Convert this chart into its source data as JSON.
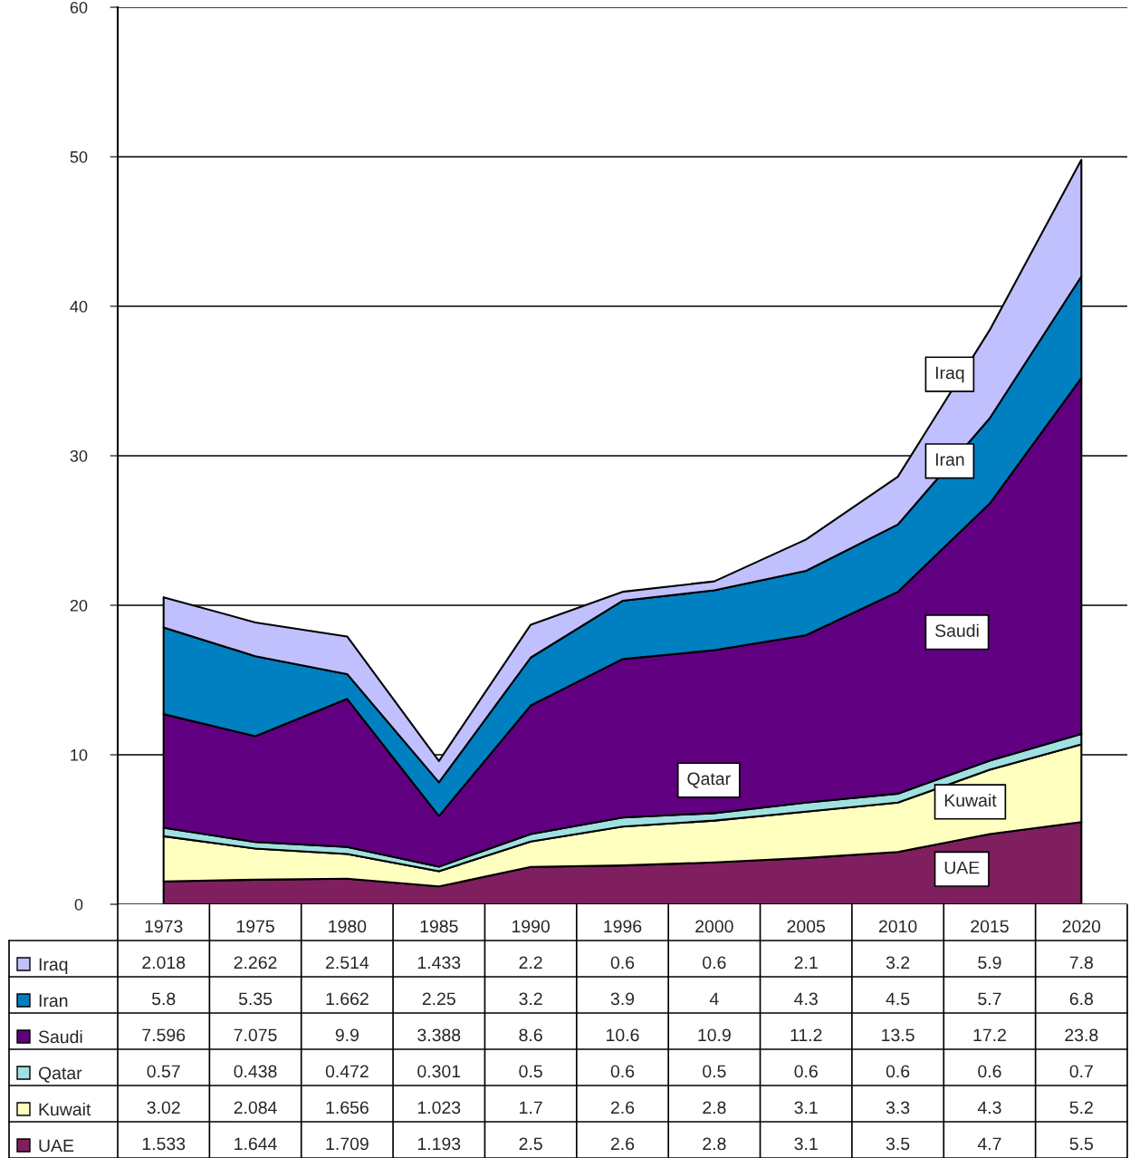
{
  "chart_data": {
    "type": "area",
    "stacked": true,
    "categories": [
      "1973",
      "1975",
      "1980",
      "1985",
      "1990",
      "1996",
      "2000",
      "2005",
      "2010",
      "2015",
      "2020"
    ],
    "series": [
      {
        "name": "UAE",
        "color": "#7f1f5f",
        "values": [
          1.533,
          1.644,
          1.709,
          1.193,
          2.5,
          2.6,
          2.8,
          3.1,
          3.5,
          4.7,
          5.5
        ]
      },
      {
        "name": "Kuwait",
        "color": "#ffffc0",
        "values": [
          3.02,
          2.084,
          1.656,
          1.023,
          1.7,
          2.6,
          2.8,
          3.1,
          3.3,
          4.3,
          5.2
        ]
      },
      {
        "name": "Qatar",
        "color": "#a0e0e0",
        "values": [
          0.57,
          0.438,
          0.472,
          0.301,
          0.5,
          0.6,
          0.5,
          0.6,
          0.6,
          0.6,
          0.7
        ]
      },
      {
        "name": "Saudi",
        "color": "#600080",
        "values": [
          7.596,
          7.075,
          9.9,
          3.388,
          8.6,
          10.6,
          10.9,
          11.2,
          13.5,
          17.2,
          23.8
        ]
      },
      {
        "name": "Iran",
        "color": "#0080c0",
        "values": [
          5.8,
          5.35,
          1.662,
          2.25,
          3.2,
          3.9,
          4,
          4.3,
          4.5,
          5.7,
          6.8
        ]
      },
      {
        "name": "Iraq",
        "color": "#c0c0ff",
        "values": [
          2.018,
          2.262,
          2.514,
          1.433,
          2.2,
          0.6,
          0.6,
          2.1,
          3.2,
          5.9,
          7.8
        ]
      }
    ],
    "ylim": [
      0,
      60
    ],
    "yticks": [
      0,
      10,
      20,
      30,
      40,
      50,
      60
    ],
    "grid": "y",
    "data_labels": true,
    "legend": "bottom"
  }
}
